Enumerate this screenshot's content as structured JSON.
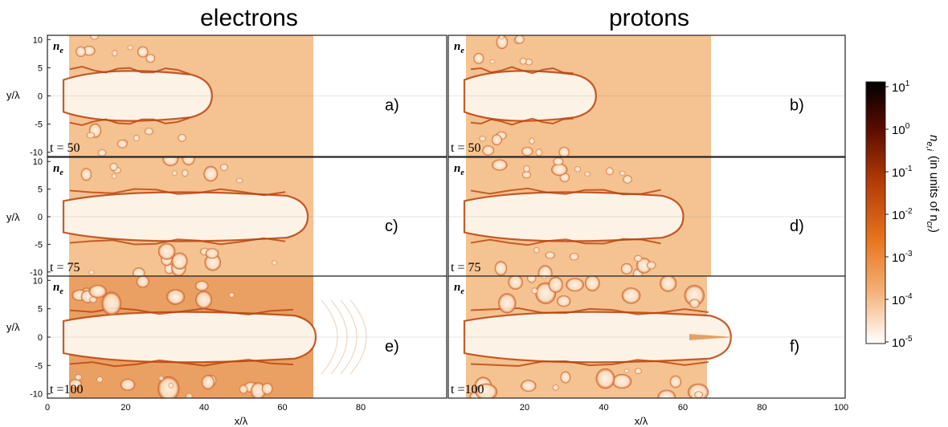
{
  "columns": [
    {
      "id": "electrons",
      "title": "electrons"
    },
    {
      "id": "protons",
      "title": "protons"
    }
  ],
  "axes": {
    "ylabel": "y/λ",
    "xlabel": "x/λ",
    "yticks": [
      "10",
      "5",
      "0",
      "-5",
      "-10"
    ],
    "xticks_left": [
      "0",
      "20",
      "40",
      "60",
      "80"
    ],
    "xticks_right": [
      "20",
      "40",
      "60",
      "80",
      "100"
    ]
  },
  "panels": [
    {
      "id": "a",
      "letter": "a)",
      "ne": "n",
      "ne_sub": "e",
      "time": "t = 50",
      "column": "electrons",
      "front_x": 38
    },
    {
      "id": "b",
      "letter": "b)",
      "ne": "n",
      "ne_sub": "e",
      "time": "t = 50",
      "column": "protons",
      "front_x": 38
    },
    {
      "id": "c",
      "letter": "c)",
      "ne": "n",
      "ne_sub": "e",
      "time": "t = 75",
      "column": "electrons",
      "front_x": 66
    },
    {
      "id": "d",
      "letter": "d)",
      "ne": "n",
      "ne_sub": "e",
      "time": "t = 75",
      "column": "protons",
      "front_x": 62
    },
    {
      "id": "e",
      "letter": "e)",
      "ne": "n",
      "ne_sub": "e",
      "time": "t =100",
      "column": "electrons",
      "front_x": 70
    },
    {
      "id": "f",
      "letter": "f)",
      "ne": "n",
      "ne_sub": "e",
      "time": "t =100",
      "column": "protons",
      "front_x": 70
    }
  ],
  "colorbar": {
    "ticks": [
      {
        "base": "10",
        "exp": "1"
      },
      {
        "base": "10",
        "exp": "0"
      },
      {
        "base": "10",
        "exp": "-1"
      },
      {
        "base": "10",
        "exp": "-2"
      },
      {
        "base": "10",
        "exp": "-3"
      },
      {
        "base": "10",
        "exp": "-4"
      },
      {
        "base": "10",
        "exp": "-5"
      }
    ],
    "title_main": "n",
    "title_sub": "e,i",
    "title_mid": "(in units of n",
    "title_sub2": "cr",
    "title_end": ")",
    "color_high": "#000000",
    "color_mid": "#e8731c",
    "color_low": "#ffffff"
  },
  "colors": {
    "plasma": "#f5c291",
    "plasma_dense": "#eaa062",
    "filament": "#b8420c",
    "cavity": "#fdf2e6"
  }
}
